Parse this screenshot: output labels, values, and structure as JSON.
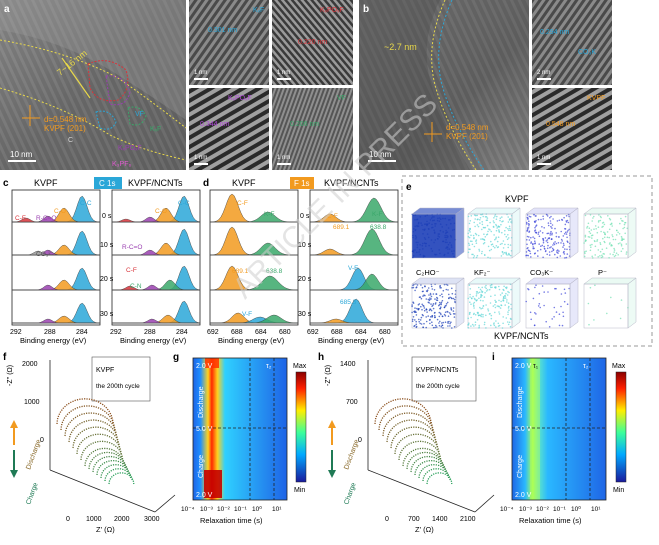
{
  "panel_letters": {
    "a": "a",
    "b": "b",
    "c": "c",
    "d": "d",
    "e": "e",
    "f": "f",
    "g": "g",
    "h": "h",
    "i": "i"
  },
  "panel_a": {
    "thickness": "7~16 nm",
    "lattice": "d=0.548 nm",
    "plane": "KVPF (201)",
    "scale": "10 nm",
    "region_labels": [
      "VF",
      "KₓF",
      "KₓPOₓF",
      "C",
      "K₃PF₆"
    ],
    "insets": [
      {
        "top": "0.301 nm",
        "tag": "KₓF",
        "scale": "1 nm"
      },
      {
        "top": "0.220 nm",
        "tag": "KₓPOₓF",
        "scale": "1 nm"
      },
      {
        "top": "0.344 nm",
        "tag": "KₓPOₓF",
        "scale": "1 nm"
      },
      {
        "top": "0.206 nm",
        "tag": "VF",
        "scale": "1 nm"
      }
    ]
  },
  "panel_b": {
    "thickness": "~2.7 nm",
    "lattice": "d=0.548 nm",
    "plane": "KVPF (201)",
    "scale": "10 nm",
    "insets": [
      {
        "top": "0.294 nm",
        "tag": "CO₃K",
        "scale": "2 nm"
      },
      {
        "top": "0.548 nm",
        "tag": "KVPF",
        "scale": "1 nm"
      }
    ]
  },
  "panel_c": {
    "left_title": "KVPF",
    "badge": "C 1s",
    "right_title": "KVPF/NCNTs",
    "times": [
      "0 s",
      "10 s",
      "20 s",
      "30 s"
    ],
    "peak_labels_left": [
      "C-C",
      "C-O",
      "R-C=O",
      "C-F",
      "CO₃²⁻"
    ],
    "peak_labels_right": [
      "C-C",
      "C-O",
      "R-C=O",
      "C-F",
      "C-N"
    ],
    "xticks": [
      "292",
      "288",
      "284",
      "292",
      "288",
      "284"
    ],
    "xlabel": "Binding energy (eV)"
  },
  "panel_d": {
    "left_title": "KVPF",
    "badge": "F 1s",
    "right_title": "KVPF/NCNTs",
    "times": [
      "0 s",
      "10 s",
      "20 s",
      "30 s"
    ],
    "left_labels": [
      "C-F",
      "K-F",
      "689.1",
      "638.8",
      "V-F"
    ],
    "right_labels": [
      "C-F",
      "K-F",
      "689.1",
      "638.8",
      "V-F",
      "685.3"
    ],
    "xticks": [
      "692",
      "688",
      "684",
      "680",
      "692",
      "688",
      "684",
      "680"
    ],
    "xlabel": "Binding energy (eV)"
  },
  "panel_e": {
    "top_title": "KVPF",
    "bottom_title": "KVPF/NCNTs",
    "species": [
      "C₂HO⁻",
      "KF₂⁻",
      "CO₃K⁻",
      "P⁻"
    ],
    "colors": [
      "#1d3fb8",
      "#5fd6d6",
      "#3a43d8",
      "#6fe0b0"
    ]
  },
  "panel_f": {
    "title": "KVPF",
    "subtitle": "the 200th cycle",
    "yaxis": "-Z'' (Ω)",
    "xaxis": "Z' (Ω)",
    "yticks": [
      "2000",
      "1000",
      "0"
    ],
    "xticks": [
      "0",
      "1000",
      "2000",
      "3000"
    ],
    "discharge": "Discharge",
    "charge": "Charge"
  },
  "panel_g": {
    "tau": "τ₂",
    "vtop": "2.0 V",
    "vmid": "5.0 V",
    "vbot": "2.0 V",
    "discharge": "Discharge",
    "charge": "Charge",
    "xlabel": "Relaxation time (s)",
    "xticks": [
      "10⁻⁴",
      "10⁻³",
      "10⁻²",
      "10⁻¹",
      "10⁰",
      "10¹"
    ],
    "cmax": "Max",
    "cmin": "Min"
  },
  "panel_h": {
    "title": "KVPF/NCNTs",
    "subtitle": "the 200th cycle",
    "yaxis": "-Z'' (Ω)",
    "xaxis": "Z' (Ω)",
    "yticks": [
      "1400",
      "700",
      "0"
    ],
    "xticks": [
      "0",
      "700",
      "1400",
      "2100"
    ],
    "discharge": "Discharge",
    "charge": "Charge"
  },
  "panel_i": {
    "tau1": "τ₁",
    "tau2": "τ₂",
    "vtop": "2.0 V",
    "vmid": "5.0 V",
    "vbot": "2.0 V",
    "discharge": "Discharge",
    "charge": "Charge",
    "xlabel": "Relaxation time (s)",
    "xticks": [
      "10⁻⁴",
      "10⁻³",
      "10⁻²",
      "10⁻¹",
      "10⁰",
      "10¹"
    ],
    "cmax": "Max",
    "cmin": "Min"
  },
  "watermark": "ARTICLE IN PRESS",
  "colors": {
    "orange": "#f29a1f",
    "cyan": "#2aa7d8",
    "green": "#3aa86a",
    "purple": "#9a3fb0",
    "red": "#d8333a",
    "yellow": "#e8d84a"
  }
}
